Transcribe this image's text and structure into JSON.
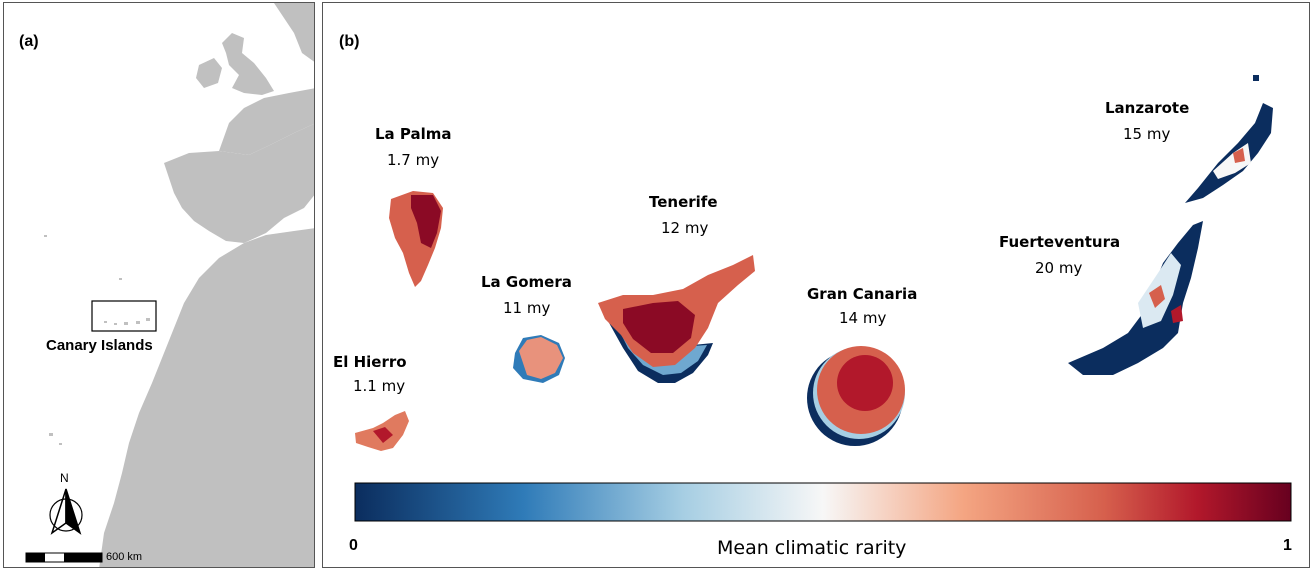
{
  "panel_a": {
    "label": "(a)",
    "region_label": "Canary Islands",
    "north_label": "N",
    "scale_label": "600 km",
    "colors": {
      "land": "#c0c0c0",
      "sea": "#ffffff"
    }
  },
  "panel_b": {
    "label": "(b)",
    "islands": [
      {
        "name": "La Palma",
        "age": "1.7 my"
      },
      {
        "name": "El Hierro",
        "age": "1.1 my"
      },
      {
        "name": "La Gomera",
        "age": "11 my"
      },
      {
        "name": "Tenerife",
        "age": "12 my"
      },
      {
        "name": "Gran Canaria",
        "age": "14 my"
      },
      {
        "name": "Fuerteventura",
        "age": "20 my"
      },
      {
        "name": "Lanzarote",
        "age": "15 my"
      }
    ],
    "colorbar": {
      "title": "Mean climatic rarity",
      "min_label": "0",
      "max_label": "1",
      "colors": [
        "#0b2d5e",
        "#2f7bb8",
        "#a6cee3",
        "#f7f7f7",
        "#f4a582",
        "#d6604d",
        "#b2182b",
        "#67001f"
      ]
    }
  }
}
